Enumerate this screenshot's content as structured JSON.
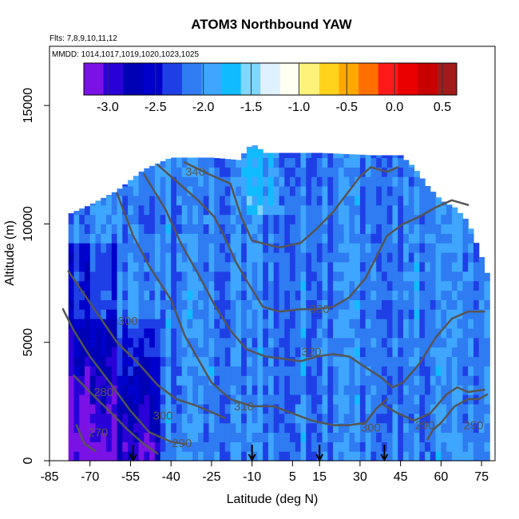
{
  "chart_data": {
    "type": "heatmap",
    "title": "ATOM3 Northbound YAW",
    "flights_note": "Flts: 7,8,9,10,11,12",
    "dates_note": "MMDD: 1014,1017,1019,1020,1023,1025",
    "xlabel": "Latitude (deg N)",
    "ylabel": "Altitude (m)",
    "xlim": [
      -85,
      80
    ],
    "ylim": [
      0,
      17500
    ],
    "x_ticks": [
      -85,
      -70,
      -55,
      -40,
      -25,
      -10,
      5,
      15,
      30,
      45,
      60,
      75
    ],
    "y_ticks": [
      0,
      5000,
      10000,
      15000
    ],
    "colorbar": {
      "range": [
        -3.25,
        0.65
      ],
      "ticks": [
        -3.0,
        -2.5,
        -2.0,
        -1.5,
        -1.0,
        -0.5,
        0.0,
        0.5
      ],
      "tick_labels": [
        "-3.0",
        "-2.5",
        "-2.0",
        "-1.5",
        "-1.0",
        "-0.5",
        "0.0",
        "0.5"
      ],
      "colors": [
        "#7a12e6",
        "#2a00d8",
        "#0000b4",
        "#0000cc",
        "#1f3fe6",
        "#2f7bf2",
        "#3fa6ff",
        "#11bbff",
        "#7fd6ff",
        "#dff0ff",
        "#fffff2",
        "#fff27a",
        "#ffd21c",
        "#ffa800",
        "#ff6f00",
        "#ff1a1a",
        "#ea0000",
        "#c80000",
        "#a31a1a"
      ]
    },
    "data_extent": [
      {
        "lat": -78,
        "top": 10400
      },
      {
        "lat": -70,
        "top": 10800
      },
      {
        "lat": -60,
        "top": 11400
      },
      {
        "lat": -50,
        "top": 12300
      },
      {
        "lat": -40,
        "top": 12800
      },
      {
        "lat": -25,
        "top": 12800
      },
      {
        "lat": -15,
        "top": 12700
      },
      {
        "lat": -10,
        "top": 13400
      },
      {
        "lat": -5,
        "top": 13000
      },
      {
        "lat": 15,
        "top": 13000
      },
      {
        "lat": 35,
        "top": 12900
      },
      {
        "lat": 45,
        "top": 12900
      },
      {
        "lat": 50,
        "top": 12400
      },
      {
        "lat": 55,
        "top": 11600
      },
      {
        "lat": 60,
        "top": 11000
      },
      {
        "lat": 65,
        "top": 10700
      },
      {
        "lat": 70,
        "top": 10100
      },
      {
        "lat": 75,
        "top": 8600
      },
      {
        "lat": 78,
        "top": 7600
      }
    ],
    "data_lat_range": [
      -78,
      78
    ],
    "typical_value": -2.1,
    "contours": [
      {
        "level": "270",
        "points": [
          [
            -75,
            1500
          ],
          [
            -72,
            700
          ],
          [
            -68,
            400
          ]
        ]
      },
      {
        "level": "280",
        "points": [
          [
            -76,
            3600
          ],
          [
            -70,
            2900
          ],
          [
            -62,
            2000
          ],
          [
            -56,
            1300
          ],
          [
            -50,
            700
          ],
          [
            -45,
            300
          ]
        ]
      },
      {
        "level": "290",
        "points": [
          [
            -80,
            6400
          ],
          [
            -76,
            5500
          ],
          [
            -70,
            4400
          ],
          [
            -62,
            3200
          ],
          [
            -55,
            2100
          ],
          [
            -48,
            1200
          ],
          [
            -40,
            800
          ],
          [
            -35,
            700
          ]
        ]
      },
      {
        "level": "290",
        "points": [
          [
            55,
            900
          ],
          [
            57,
            1300
          ],
          [
            60,
            1600
          ],
          [
            65,
            2300
          ],
          [
            70,
            2600
          ],
          [
            74,
            2600
          ],
          [
            77,
            2800
          ]
        ]
      },
      {
        "level": "300",
        "points": [
          [
            -78,
            8000
          ],
          [
            -72,
            7000
          ],
          [
            -66,
            6000
          ],
          [
            -60,
            5000
          ],
          [
            -52,
            4100
          ],
          [
            -45,
            3200
          ],
          [
            -38,
            2600
          ],
          [
            -30,
            2300
          ],
          [
            -24,
            2000
          ],
          [
            -20,
            1800
          ]
        ]
      },
      {
        "level": "300",
        "points": [
          [
            38,
            2400
          ],
          [
            44,
            2000
          ],
          [
            50,
            1700
          ],
          [
            56,
            2000
          ],
          [
            62,
            2800
          ],
          [
            66,
            3100
          ],
          [
            70,
            2900
          ],
          [
            76,
            3000
          ]
        ]
      },
      {
        "level": "310",
        "points": [
          [
            -60,
            11300
          ],
          [
            -54,
            9500
          ],
          [
            -48,
            8200
          ],
          [
            -40,
            6800
          ],
          [
            -35,
            5300
          ],
          [
            -30,
            4300
          ],
          [
            -25,
            3300
          ],
          [
            -18,
            2600
          ],
          [
            -10,
            2300
          ],
          [
            -2,
            2300
          ],
          [
            5,
            2000
          ],
          [
            12,
            1700
          ],
          [
            20,
            1500
          ],
          [
            26,
            1500
          ],
          [
            32,
            1600
          ],
          [
            36,
            2200
          ],
          [
            40,
            2600
          ]
        ]
      },
      {
        "level": "320",
        "points": [
          [
            -50,
            12100
          ],
          [
            -42,
            10600
          ],
          [
            -36,
            9100
          ],
          [
            -30,
            7900
          ],
          [
            -24,
            6600
          ],
          [
            -18,
            5500
          ],
          [
            -12,
            4700
          ],
          [
            -5,
            4400
          ],
          [
            2,
            4300
          ],
          [
            8,
            4200
          ],
          [
            14,
            4400
          ],
          [
            20,
            4500
          ],
          [
            26,
            4400
          ],
          [
            30,
            4100
          ],
          [
            34,
            3800
          ],
          [
            38,
            3500
          ],
          [
            42,
            3100
          ],
          [
            46,
            3300
          ],
          [
            52,
            4100
          ],
          [
            58,
            5200
          ],
          [
            64,
            6000
          ],
          [
            70,
            6300
          ],
          [
            76,
            6300
          ]
        ]
      },
      {
        "level": "330",
        "points": [
          [
            -45,
            12500
          ],
          [
            -38,
            11800
          ],
          [
            -30,
            11000
          ],
          [
            -24,
            10300
          ],
          [
            -20,
            9400
          ],
          [
            -16,
            8400
          ],
          [
            -12,
            7600
          ],
          [
            -6,
            6500
          ],
          [
            0,
            6300
          ],
          [
            8,
            6400
          ],
          [
            14,
            6400
          ],
          [
            20,
            6500
          ],
          [
            26,
            6900
          ],
          [
            32,
            7700
          ],
          [
            36,
            8600
          ],
          [
            40,
            9500
          ],
          [
            46,
            10000
          ],
          [
            52,
            10300
          ],
          [
            58,
            10700
          ],
          [
            64,
            11000
          ],
          [
            70,
            10800
          ]
        ]
      },
      {
        "level": "340",
        "points": [
          [
            -35,
            12600
          ],
          [
            -26,
            12100
          ],
          [
            -18,
            11700
          ],
          [
            -16,
            11000
          ],
          [
            -14,
            10300
          ],
          [
            -10,
            9300
          ],
          [
            0,
            9000
          ],
          [
            8,
            9200
          ],
          [
            14,
            9800
          ],
          [
            20,
            10500
          ],
          [
            26,
            11400
          ],
          [
            30,
            12000
          ],
          [
            34,
            12400
          ],
          [
            40,
            12200
          ],
          [
            44,
            12400
          ]
        ]
      }
    ],
    "contour_labels": [
      {
        "text": "340",
        "lat": -31,
        "alt": 12200
      },
      {
        "text": "330",
        "lat": 15,
        "alt": 6400
      },
      {
        "text": "320",
        "lat": 12,
        "alt": 4600
      },
      {
        "text": "310",
        "lat": -13,
        "alt": 2300
      },
      {
        "text": "300",
        "lat": -43,
        "alt": 1900
      },
      {
        "text": "300",
        "lat": -56,
        "alt": 5900
      },
      {
        "text": "290",
        "lat": -36,
        "alt": 750
      },
      {
        "text": "290",
        "lat": 54,
        "alt": 1500
      },
      {
        "text": "290",
        "lat": 72,
        "alt": 1500
      },
      {
        "text": "300",
        "lat": 34,
        "alt": 1400
      },
      {
        "text": "280",
        "lat": -65,
        "alt": 2900
      },
      {
        "text": "270",
        "lat": -67,
        "alt": 1200
      }
    ],
    "arrow_lats": [
      -54,
      -10,
      15,
      39
    ]
  }
}
